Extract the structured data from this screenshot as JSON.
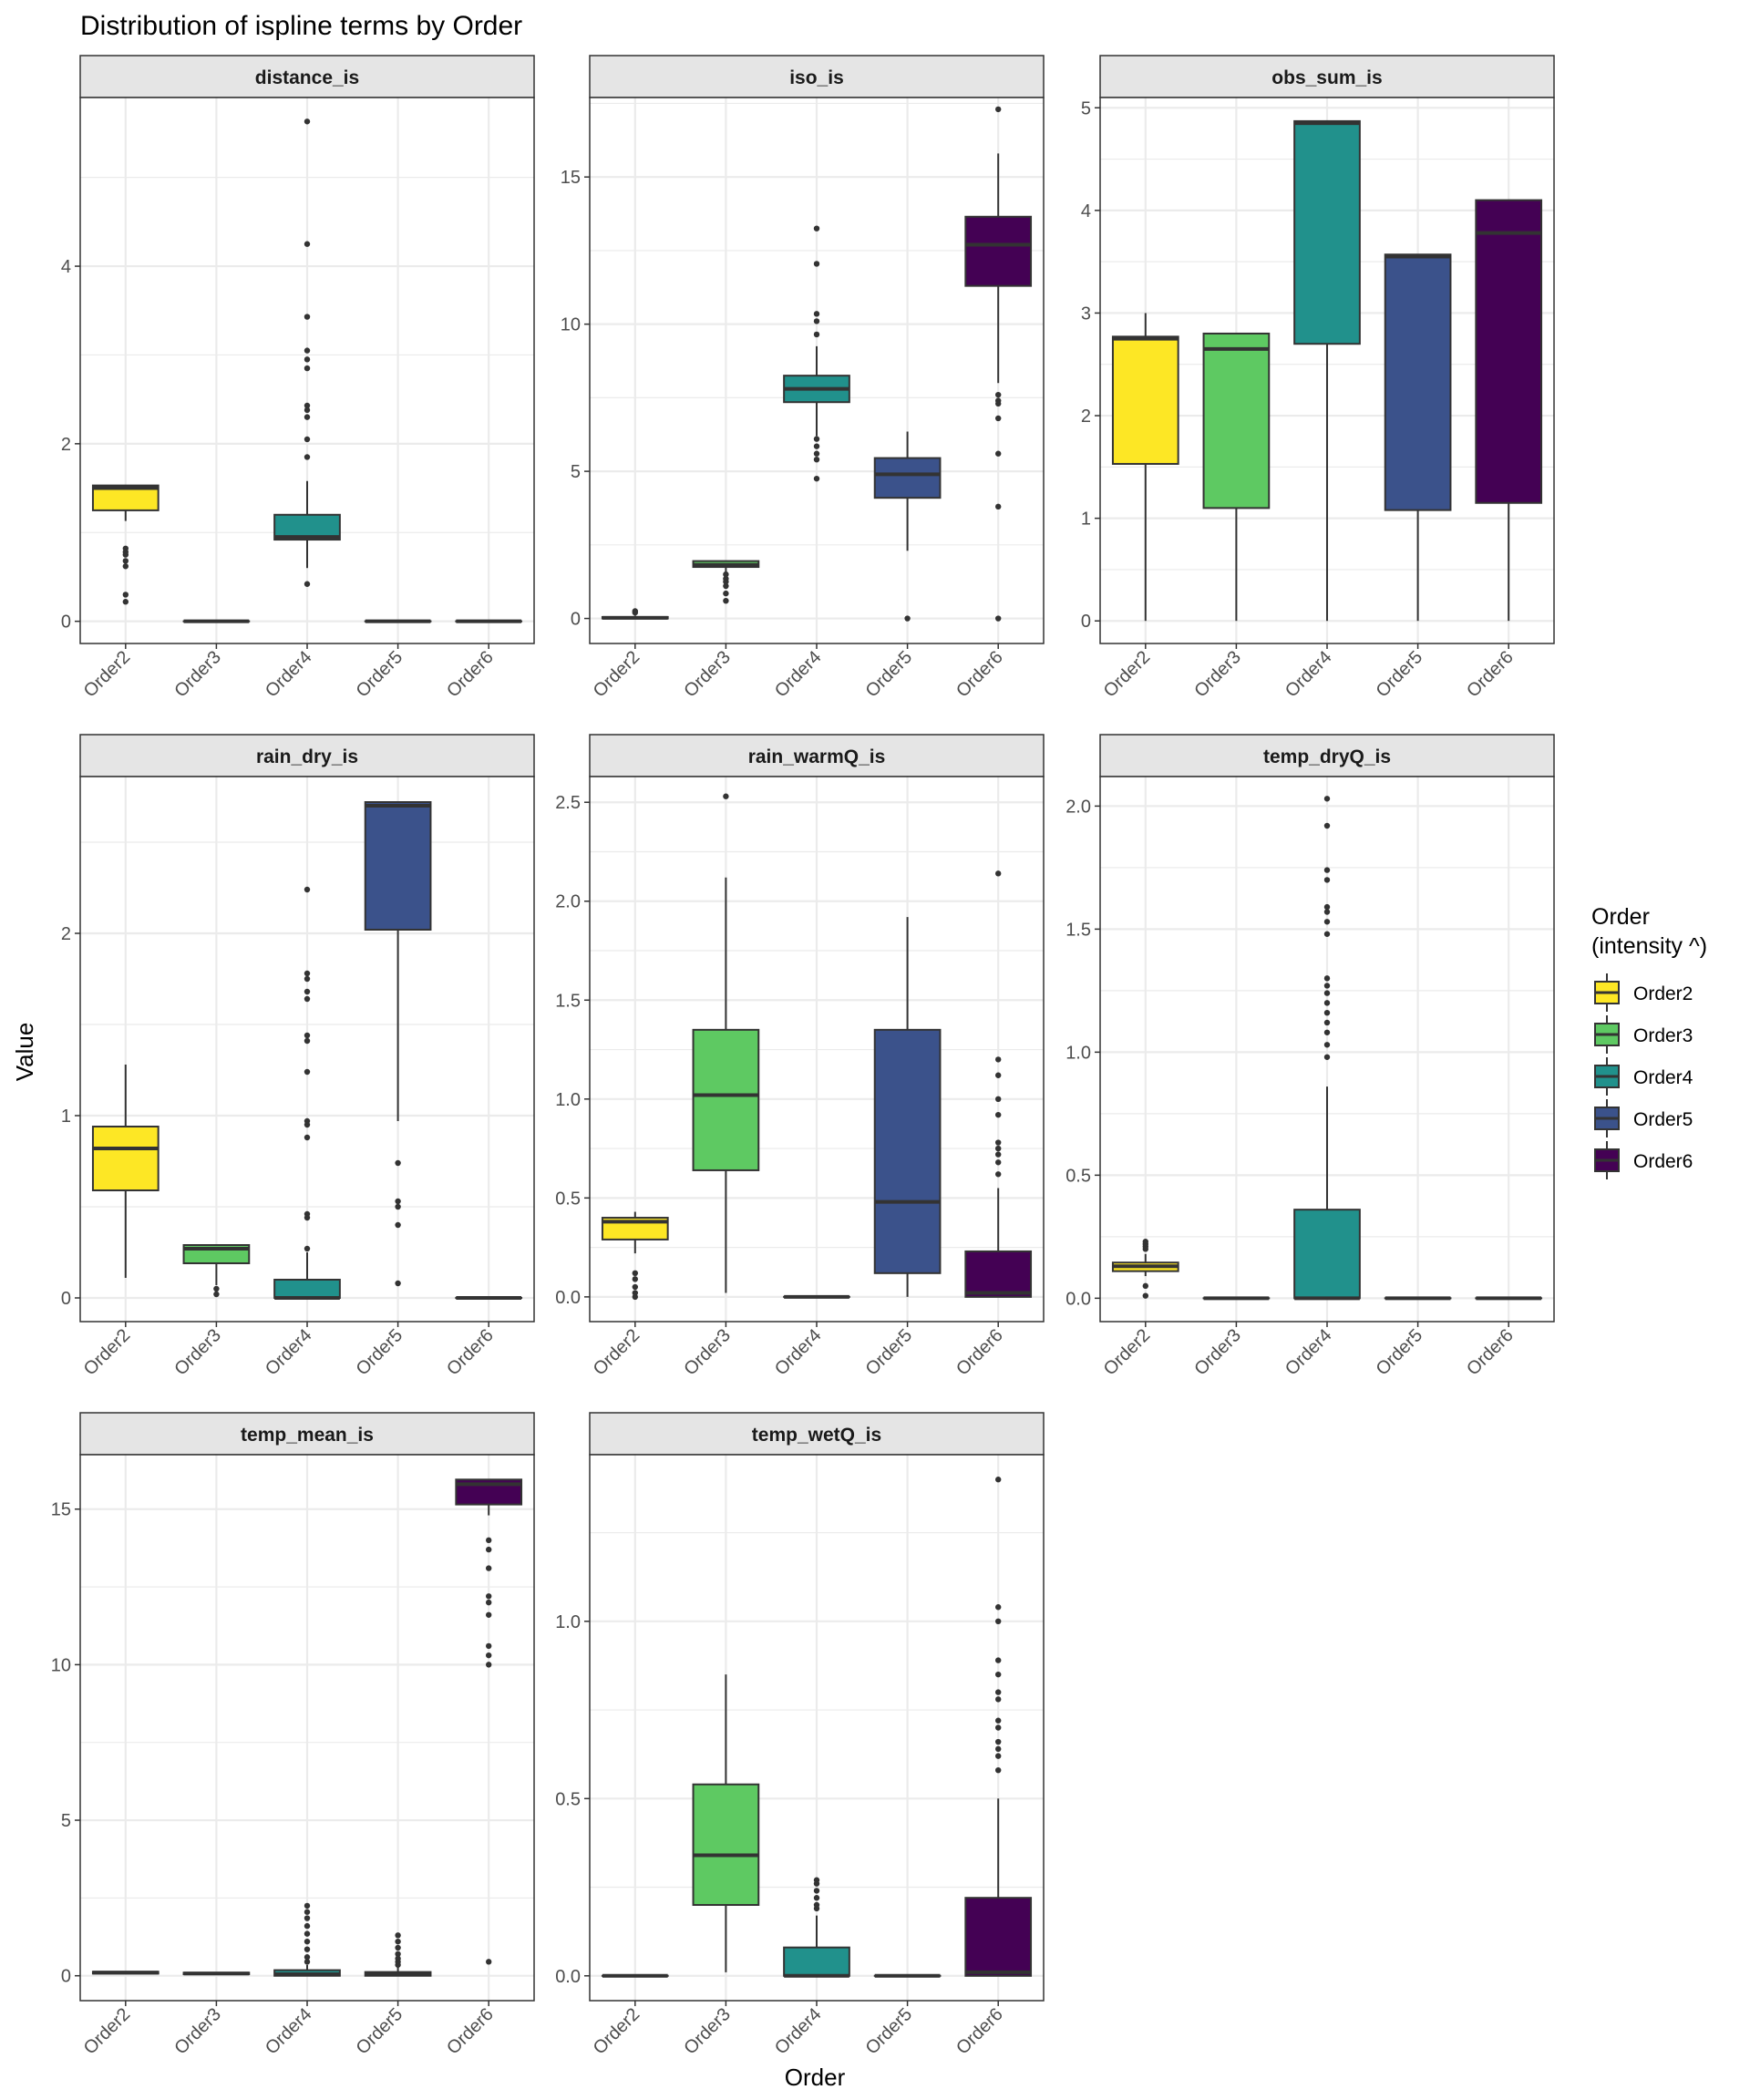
{
  "title": "Distribution of ispline terms by Order",
  "xlabel": "Order",
  "ylabel": "Value",
  "legend": {
    "title_line1": "Order",
    "title_line2": "(intensity ^)",
    "placement": "right",
    "items": [
      "Order2",
      "Order3",
      "Order4",
      "Order5",
      "Order6"
    ]
  },
  "colors": {
    "Order2": "#FDE725",
    "Order3": "#5EC962",
    "Order4": "#21918C",
    "Order5": "#3B528B",
    "Order6": "#440154",
    "strip_fill": "#E5E5E5",
    "grid": "#EBEBEB",
    "box_line": "#333333"
  },
  "chart_data": [
    {
      "type": "boxplot",
      "title": "distance_is",
      "categories": [
        "Order2",
        "Order3",
        "Order4",
        "Order5",
        "Order6"
      ],
      "ylim": [
        -0.25,
        5.9
      ],
      "yticks": [
        0,
        2,
        4
      ],
      "yticklabels": [
        "0",
        "2",
        "4"
      ],
      "boxes": [
        {
          "q1": 1.25,
          "median": 1.5,
          "q3": 1.53,
          "lo": 1.13,
          "hi": 1.53,
          "outliers": [
            0.82,
            0.78,
            0.75,
            0.68,
            0.62,
            0.3,
            0.22
          ]
        },
        {
          "q1": 0,
          "median": 0,
          "q3": 0,
          "lo": 0,
          "hi": 0,
          "outliers": []
        },
        {
          "q1": 0.92,
          "median": 0.95,
          "q3": 1.2,
          "lo": 0.6,
          "hi": 1.58,
          "outliers": [
            5.63,
            4.25,
            3.43,
            3.05,
            2.95,
            2.85,
            2.43,
            2.38,
            2.3,
            2.05,
            1.85,
            0.42
          ]
        },
        {
          "q1": 0,
          "median": 0,
          "q3": 0,
          "lo": 0,
          "hi": 0,
          "outliers": []
        },
        {
          "q1": 0,
          "median": 0,
          "q3": 0,
          "lo": 0,
          "hi": 0,
          "outliers": []
        }
      ]
    },
    {
      "type": "boxplot",
      "title": "iso_is",
      "categories": [
        "Order2",
        "Order3",
        "Order4",
        "Order5",
        "Order6"
      ],
      "ylim": [
        -0.85,
        17.7
      ],
      "yticks": [
        0,
        5,
        10,
        15
      ],
      "yticklabels": [
        "0",
        "5",
        "10",
        "15"
      ],
      "boxes": [
        {
          "q1": 0,
          "median": 0.02,
          "q3": 0.05,
          "lo": 0,
          "hi": 0.1,
          "outliers": [
            0.2,
            0.25
          ]
        },
        {
          "q1": 1.75,
          "median": 1.82,
          "q3": 1.95,
          "lo": 1.55,
          "hi": 1.95,
          "outliers": [
            1.5,
            1.35,
            1.25,
            1.1,
            0.85,
            0.6
          ]
        },
        {
          "q1": 7.35,
          "median": 7.8,
          "q3": 8.25,
          "lo": 6.2,
          "hi": 9.25,
          "outliers": [
            13.25,
            12.05,
            10.35,
            10.1,
            9.65,
            6.1,
            5.85,
            5.6,
            5.4,
            4.75
          ]
        },
        {
          "q1": 4.1,
          "median": 4.9,
          "q3": 5.45,
          "lo": 2.3,
          "hi": 6.35,
          "outliers": [
            0
          ]
        },
        {
          "q1": 11.3,
          "median": 12.7,
          "q3": 13.65,
          "lo": 8.0,
          "hi": 15.8,
          "outliers": [
            17.3,
            7.6,
            7.4,
            7.3,
            6.8,
            5.6,
            3.8,
            0
          ]
        }
      ]
    },
    {
      "type": "boxplot",
      "title": "obs_sum_is",
      "categories": [
        "Order2",
        "Order3",
        "Order4",
        "Order5",
        "Order6"
      ],
      "ylim": [
        -0.22,
        5.1
      ],
      "yticks": [
        0,
        1,
        2,
        3,
        4,
        5
      ],
      "yticklabels": [
        "0",
        "1",
        "2",
        "3",
        "4",
        "5"
      ],
      "boxes": [
        {
          "q1": 1.53,
          "median": 2.75,
          "q3": 2.77,
          "lo": 0,
          "hi": 3.0,
          "outliers": []
        },
        {
          "q1": 1.1,
          "median": 2.65,
          "q3": 2.8,
          "lo": 0,
          "hi": 2.8,
          "outliers": []
        },
        {
          "q1": 2.7,
          "median": 4.85,
          "q3": 4.87,
          "lo": 0,
          "hi": 4.87,
          "outliers": []
        },
        {
          "q1": 1.08,
          "median": 3.55,
          "q3": 3.57,
          "lo": 0,
          "hi": 3.57,
          "outliers": []
        },
        {
          "q1": 1.15,
          "median": 3.78,
          "q3": 4.1,
          "lo": 0,
          "hi": 4.1,
          "outliers": []
        }
      ]
    },
    {
      "type": "boxplot",
      "title": "rain_dry_is",
      "categories": [
        "Order2",
        "Order3",
        "Order4",
        "Order5",
        "Order6"
      ],
      "ylim": [
        -0.13,
        2.86
      ],
      "yticks": [
        0,
        1,
        2
      ],
      "yticklabels": [
        "0",
        "1",
        "2"
      ],
      "boxes": [
        {
          "q1": 0.59,
          "median": 0.82,
          "q3": 0.94,
          "lo": 0.11,
          "hi": 1.28,
          "outliers": []
        },
        {
          "q1": 0.19,
          "median": 0.27,
          "q3": 0.29,
          "lo": 0.07,
          "hi": 0.29,
          "outliers": [
            0.05,
            0.02
          ]
        },
        {
          "q1": 0,
          "median": 0,
          "q3": 0.1,
          "lo": 0,
          "hi": 0.25,
          "outliers": [
            2.24,
            1.78,
            1.75,
            1.68,
            1.64,
            1.44,
            1.41,
            1.24,
            0.97,
            0.95,
            0.88,
            0.46,
            0.44,
            0.27
          ]
        },
        {
          "q1": 2.02,
          "median": 2.7,
          "q3": 2.72,
          "lo": 0.97,
          "hi": 2.72,
          "outliers": [
            0.74,
            0.53,
            0.5,
            0.4,
            0.08
          ]
        },
        {
          "q1": 0,
          "median": 0,
          "q3": 0,
          "lo": 0,
          "hi": 0,
          "outliers": []
        }
      ]
    },
    {
      "type": "boxplot",
      "title": "rain_warmQ_is",
      "categories": [
        "Order2",
        "Order3",
        "Order4",
        "Order5",
        "Order6"
      ],
      "ylim": [
        -0.125,
        2.63
      ],
      "yticks": [
        0,
        0.5,
        1.0,
        1.5,
        2.0,
        2.5
      ],
      "yticklabels": [
        "0.0",
        "0.5",
        "1.0",
        "1.5",
        "2.0",
        "2.5"
      ],
      "boxes": [
        {
          "q1": 0.29,
          "median": 0.38,
          "q3": 0.4,
          "lo": 0.22,
          "hi": 0.43,
          "outliers": [
            0.12,
            0.09,
            0.05,
            0.02,
            0.0
          ]
        },
        {
          "q1": 0.64,
          "median": 1.02,
          "q3": 1.35,
          "lo": 0.02,
          "hi": 2.12,
          "outliers": [
            2.53
          ]
        },
        {
          "q1": 0,
          "median": 0,
          "q3": 0,
          "lo": 0,
          "hi": 0,
          "outliers": []
        },
        {
          "q1": 0.12,
          "median": 0.48,
          "q3": 1.35,
          "lo": 0,
          "hi": 1.92,
          "outliers": []
        },
        {
          "q1": 0,
          "median": 0.02,
          "q3": 0.23,
          "lo": 0,
          "hi": 0.55,
          "outliers": [
            2.14,
            1.2,
            1.12,
            1.0,
            0.92,
            0.78,
            0.75,
            0.72,
            0.68,
            0.62
          ]
        }
      ]
    },
    {
      "type": "boxplot",
      "title": "temp_dryQ_is",
      "categories": [
        "Order2",
        "Order3",
        "Order4",
        "Order5",
        "Order6"
      ],
      "ylim": [
        -0.095,
        2.12
      ],
      "yticks": [
        0,
        0.5,
        1.0,
        1.5,
        2.0
      ],
      "yticklabels": [
        "0.0",
        "0.5",
        "1.0",
        "1.5",
        "2.0"
      ],
      "boxes": [
        {
          "q1": 0.11,
          "median": 0.13,
          "q3": 0.145,
          "lo": 0.09,
          "hi": 0.18,
          "outliers": [
            0.23,
            0.22,
            0.21,
            0.2,
            0.05,
            0.01
          ]
        },
        {
          "q1": 0,
          "median": 0,
          "q3": 0,
          "lo": 0,
          "hi": 0,
          "outliers": []
        },
        {
          "q1": 0,
          "median": 0,
          "q3": 0.36,
          "lo": 0,
          "hi": 0.86,
          "outliers": [
            2.03,
            1.92,
            1.74,
            1.7,
            1.59,
            1.57,
            1.53,
            1.48,
            1.3,
            1.27,
            1.24,
            1.2,
            1.16,
            1.12,
            1.08,
            1.03,
            0.98
          ]
        },
        {
          "q1": 0,
          "median": 0,
          "q3": 0,
          "lo": 0,
          "hi": 0,
          "outliers": []
        },
        {
          "q1": 0,
          "median": 0,
          "q3": 0,
          "lo": 0,
          "hi": 0,
          "outliers": []
        }
      ]
    },
    {
      "type": "boxplot",
      "title": "temp_mean_is",
      "categories": [
        "Order2",
        "Order3",
        "Order4",
        "Order5",
        "Order6"
      ],
      "ylim": [
        -0.8,
        16.75
      ],
      "yticks": [
        0,
        5,
        10,
        15
      ],
      "yticklabels": [
        "0",
        "5",
        "10",
        "15"
      ],
      "boxes": [
        {
          "q1": 0.07,
          "median": 0.1,
          "q3": 0.13,
          "lo": 0.07,
          "hi": 0.13,
          "outliers": []
        },
        {
          "q1": 0.05,
          "median": 0.07,
          "q3": 0.1,
          "lo": 0.05,
          "hi": 0.1,
          "outliers": []
        },
        {
          "q1": 0,
          "median": 0.05,
          "q3": 0.18,
          "lo": 0,
          "hi": 0.35,
          "outliers": [
            2.25,
            2.05,
            1.85,
            1.6,
            1.35,
            1.1,
            0.85,
            0.6,
            0.45
          ]
        },
        {
          "q1": 0,
          "median": 0.04,
          "q3": 0.12,
          "lo": 0,
          "hi": 0.3,
          "outliers": [
            1.3,
            1.1,
            0.9,
            0.7,
            0.55,
            0.45,
            0.35
          ]
        },
        {
          "q1": 15.15,
          "median": 15.8,
          "q3": 15.95,
          "lo": 14.8,
          "hi": 15.95,
          "outliers": [
            14.0,
            13.7,
            13.1,
            12.2,
            12.0,
            11.6,
            10.6,
            10.3,
            10.0,
            0.45
          ]
        }
      ]
    },
    {
      "type": "boxplot",
      "title": "temp_wetQ_is",
      "categories": [
        "Order2",
        "Order3",
        "Order4",
        "Order5",
        "Order6"
      ],
      "ylim": [
        -0.07,
        1.47
      ],
      "yticks": [
        0,
        0.5,
        1.0
      ],
      "yticklabels": [
        "0.0",
        "0.5",
        "1.0"
      ],
      "boxes": [
        {
          "q1": 0,
          "median": 0,
          "q3": 0,
          "lo": 0,
          "hi": 0,
          "outliers": []
        },
        {
          "q1": 0.2,
          "median": 0.34,
          "q3": 0.54,
          "lo": 0.01,
          "hi": 0.85,
          "outliers": []
        },
        {
          "q1": 0,
          "median": 0,
          "q3": 0.08,
          "lo": 0,
          "hi": 0.17,
          "outliers": [
            0.27,
            0.26,
            0.24,
            0.22,
            0.2,
            0.19
          ]
        },
        {
          "q1": 0,
          "median": 0,
          "q3": 0,
          "lo": 0,
          "hi": 0,
          "outliers": []
        },
        {
          "q1": 0,
          "median": 0.01,
          "q3": 0.22,
          "lo": 0,
          "hi": 0.5,
          "outliers": [
            1.4,
            1.04,
            1.0,
            0.89,
            0.85,
            0.8,
            0.78,
            0.72,
            0.7,
            0.66,
            0.64,
            0.62,
            0.58
          ]
        }
      ]
    }
  ]
}
